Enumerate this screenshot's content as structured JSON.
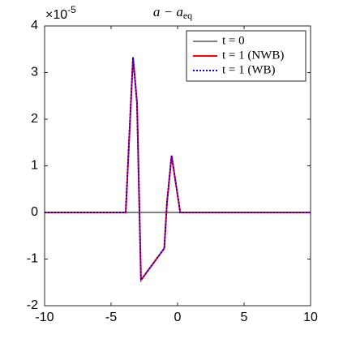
{
  "chart_data": {
    "type": "line",
    "title": "a − a",
    "title_subscript": "eq",
    "y_multiplier": "×10",
    "y_multiplier_exponent": "-5",
    "xlim": [
      -10,
      10
    ],
    "xticks": [
      -10,
      -5,
      0,
      5,
      10
    ],
    "ylim": [
      -2,
      4
    ],
    "yticks": [
      -2,
      -1,
      0,
      1,
      2,
      3,
      4
    ],
    "grid": false,
    "legend": "upper right",
    "series": [
      {
        "name": "t = 0",
        "color": "#000000",
        "line_style": "solid",
        "width": 1,
        "x": [
          -10,
          10
        ],
        "values": [
          0,
          0
        ]
      },
      {
        "name": "t = 1 (NWB)",
        "color": "#ff0000",
        "line_style": "solid",
        "width": 2,
        "x": [
          -10,
          -3.9,
          -3.35,
          -3.05,
          -2.75,
          -1.0,
          -0.8,
          -0.45,
          0.2,
          10
        ],
        "values": [
          0,
          0,
          3.33,
          2.35,
          -1.45,
          -0.77,
          0.2,
          1.22,
          0,
          0
        ]
      },
      {
        "name": "t = 1 (WB)",
        "color": "#0000ff",
        "line_style": "dotted",
        "width": 2,
        "x": [
          -10,
          -3.9,
          -3.35,
          -3.05,
          -2.75,
          -1.0,
          -0.8,
          -0.45,
          0.2,
          10
        ],
        "values": [
          0,
          0,
          3.33,
          2.35,
          -1.45,
          -0.77,
          0.2,
          1.22,
          0,
          0
        ]
      }
    ]
  }
}
